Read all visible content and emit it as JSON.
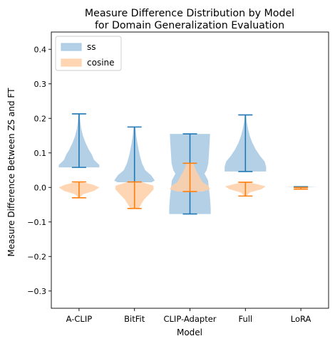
{
  "chart_data": {
    "type": "violin",
    "title_line1": "Measure Difference Distribution by Model",
    "title_line2": "for Domain Generalization Evaluation",
    "xlabel": "Model",
    "ylabel": "Measure Difference Between ZS and FT",
    "categories": [
      "A-CLIP",
      "BitFit",
      "CLIP-Adapter",
      "Full",
      "LoRA"
    ],
    "ylim": [
      -0.35,
      0.45
    ],
    "yticks": [
      -0.3,
      -0.2,
      -0.1,
      0.0,
      0.1,
      0.2,
      0.3,
      0.4
    ],
    "ytick_labels": [
      "−0.3",
      "−0.2",
      "−0.1",
      "0.0",
      "0.1",
      "0.2",
      "0.3",
      "0.4"
    ],
    "legend_position": "top-left",
    "grid": false,
    "series": [
      {
        "name": "ss",
        "fill": "#a6c8e3",
        "line": "#1f77b4",
        "violins": [
          {
            "min": 0.058,
            "max": 0.213,
            "profile": [
              [
                0.058,
                0.95
              ],
              [
                0.065,
                0.95
              ],
              [
                0.08,
                0.7
              ],
              [
                0.095,
                0.6
              ],
              [
                0.11,
                0.45
              ],
              [
                0.13,
                0.3
              ],
              [
                0.15,
                0.18
              ],
              [
                0.17,
                0.1
              ],
              [
                0.19,
                0.06
              ],
              [
                0.213,
                0.03
              ]
            ]
          },
          {
            "min": 0.015,
            "max": 0.175,
            "profile": [
              [
                0.015,
                0.8
              ],
              [
                0.02,
                0.95
              ],
              [
                0.035,
                0.78
              ],
              [
                0.05,
                0.5
              ],
              [
                0.07,
                0.35
              ],
              [
                0.09,
                0.26
              ],
              [
                0.11,
                0.19
              ],
              [
                0.13,
                0.13
              ],
              [
                0.15,
                0.08
              ],
              [
                0.175,
                0.04
              ]
            ]
          },
          {
            "min": -0.077,
            "max": 0.155,
            "profile": [
              [
                -0.077,
                0.97
              ],
              [
                -0.06,
                0.97
              ],
              [
                -0.04,
                0.95
              ],
              [
                -0.02,
                0.92
              ],
              [
                0.0,
                0.88
              ],
              [
                0.02,
                0.85
              ],
              [
                0.04,
                0.68
              ],
              [
                0.05,
                0.78
              ],
              [
                0.07,
                0.86
              ],
              [
                0.09,
                0.88
              ],
              [
                0.11,
                0.9
              ],
              [
                0.13,
                0.92
              ],
              [
                0.155,
                0.94
              ]
            ]
          },
          {
            "min": 0.046,
            "max": 0.21,
            "profile": [
              [
                0.046,
                0.97
              ],
              [
                0.06,
                0.97
              ],
              [
                0.075,
                0.9
              ],
              [
                0.09,
                0.7
              ],
              [
                0.11,
                0.48
              ],
              [
                0.13,
                0.32
              ],
              [
                0.15,
                0.2
              ],
              [
                0.17,
                0.12
              ],
              [
                0.19,
                0.06
              ],
              [
                0.21,
                0.03
              ]
            ]
          },
          {
            "min": 0.001,
            "max": 0.002,
            "profile": [
              [
                0.0005,
                0.0
              ],
              [
                0.0015,
                0.82
              ],
              [
                0.0025,
                0.0
              ]
            ]
          }
        ]
      },
      {
        "name": "cosine",
        "fill": "#ffcfa6",
        "line": "#ff7f0e",
        "violins": [
          {
            "min": -0.03,
            "max": 0.016,
            "profile": [
              [
                -0.03,
                0.03
              ],
              [
                -0.02,
                0.18
              ],
              [
                -0.01,
                0.7
              ],
              [
                0.0,
                0.95
              ],
              [
                0.008,
                0.65
              ],
              [
                0.016,
                0.1
              ]
            ]
          },
          {
            "min": -0.061,
            "max": 0.016,
            "profile": [
              [
                -0.061,
                0.2
              ],
              [
                -0.05,
                0.3
              ],
              [
                -0.035,
                0.45
              ],
              [
                -0.02,
                0.68
              ],
              [
                -0.005,
                0.9
              ],
              [
                0.005,
                0.88
              ],
              [
                0.016,
                0.3
              ]
            ]
          },
          {
            "min": -0.012,
            "max": 0.07,
            "profile": [
              [
                -0.012,
                0.6
              ],
              [
                -0.005,
                0.95
              ],
              [
                0.005,
                0.85
              ],
              [
                0.015,
                0.6
              ],
              [
                0.025,
                0.5
              ],
              [
                0.035,
                0.42
              ],
              [
                0.045,
                0.32
              ],
              [
                0.055,
                0.25
              ],
              [
                0.07,
                0.15
              ]
            ]
          },
          {
            "min": -0.025,
            "max": 0.015,
            "profile": [
              [
                -0.025,
                0.05
              ],
              [
                -0.015,
                0.2
              ],
              [
                -0.005,
                0.75
              ],
              [
                0.003,
                0.95
              ],
              [
                0.01,
                0.5
              ],
              [
                0.015,
                0.1
              ]
            ]
          },
          {
            "min": -0.005,
            "max": 0.0,
            "profile": [
              [
                -0.005,
                0.2
              ],
              [
                -0.0025,
                0.35
              ],
              [
                0.0,
                0.2
              ]
            ]
          }
        ]
      }
    ]
  }
}
